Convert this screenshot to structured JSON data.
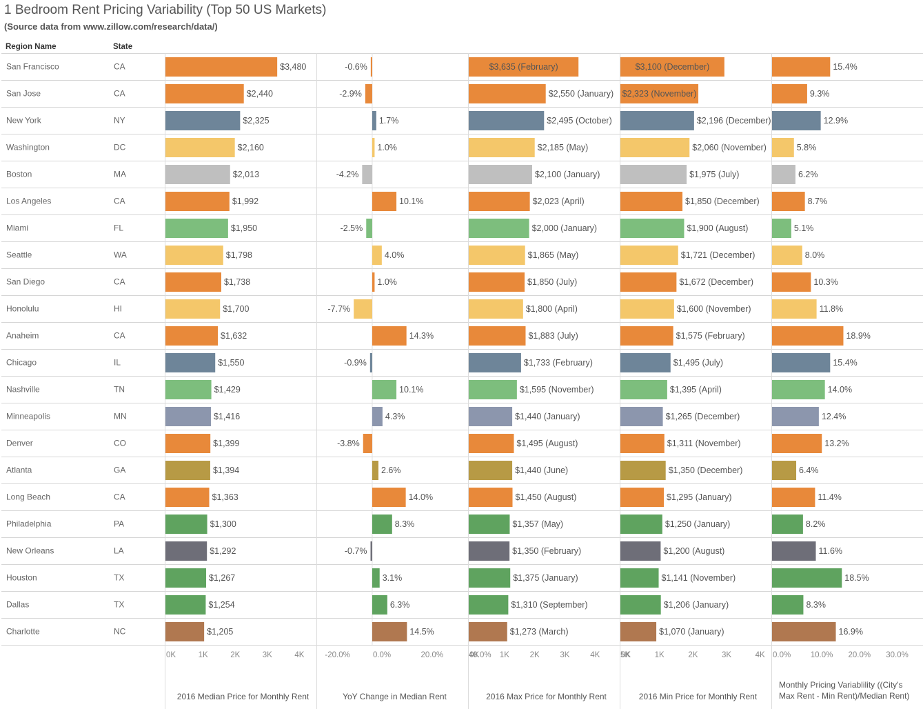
{
  "title": "1 Bedroom Rent Pricing Variability (Top 50 US Markets)",
  "subtitle": "(Source data from www.zillow.com/research/data/)",
  "headers": {
    "region": "Region Name",
    "state": "State"
  },
  "chart_data": {
    "type": "bar",
    "orientation": "horizontal",
    "rows": [
      {
        "region": "San Francisco",
        "state": "CA",
        "color": "#E8893A",
        "median": 3480,
        "median_label": "$3,480",
        "yoy": -0.6,
        "yoy_label": "-0.6%",
        "max": 3635,
        "max_label": "$3,635 (February)",
        "min": 3100,
        "min_label": "$3,100 (December)",
        "var": 15.4,
        "var_label": "15.4%"
      },
      {
        "region": "San Jose",
        "state": "CA",
        "color": "#E8893A",
        "median": 2440,
        "median_label": "$2,440",
        "yoy": -2.9,
        "yoy_label": "-2.9%",
        "max": 2550,
        "max_label": "$2,550 (January)",
        "min": 2323,
        "min_label": "$2,323 (November)",
        "var": 9.3,
        "var_label": "9.3%"
      },
      {
        "region": "New York",
        "state": "NY",
        "color": "#6E8599",
        "median": 2325,
        "median_label": "$2,325",
        "yoy": 1.7,
        "yoy_label": "1.7%",
        "max": 2495,
        "max_label": "$2,495 (October)",
        "min": 2196,
        "min_label": "$2,196 (December)",
        "var": 12.9,
        "var_label": "12.9%"
      },
      {
        "region": "Washington",
        "state": "DC",
        "color": "#F4C76A",
        "median": 2160,
        "median_label": "$2,160",
        "yoy": 1.0,
        "yoy_label": "1.0%",
        "max": 2185,
        "max_label": "$2,185 (May)",
        "min": 2060,
        "min_label": "$2,060 (November)",
        "var": 5.8,
        "var_label": "5.8%"
      },
      {
        "region": "Boston",
        "state": "MA",
        "color": "#BFBFBF",
        "median": 2013,
        "median_label": "$2,013",
        "yoy": -4.2,
        "yoy_label": "-4.2%",
        "max": 2100,
        "max_label": "$2,100 (January)",
        "min": 1975,
        "min_label": "$1,975 (July)",
        "var": 6.2,
        "var_label": "6.2%"
      },
      {
        "region": "Los Angeles",
        "state": "CA",
        "color": "#E8893A",
        "median": 1992,
        "median_label": "$1,992",
        "yoy": 10.1,
        "yoy_label": "10.1%",
        "max": 2023,
        "max_label": "$2,023 (April)",
        "min": 1850,
        "min_label": "$1,850 (December)",
        "var": 8.7,
        "var_label": "8.7%"
      },
      {
        "region": "Miami",
        "state": "FL",
        "color": "#7DBE7D",
        "median": 1950,
        "median_label": "$1,950",
        "yoy": -2.5,
        "yoy_label": "-2.5%",
        "max": 2000,
        "max_label": "$2,000 (January)",
        "min": 1900,
        "min_label": "$1,900 (August)",
        "var": 5.1,
        "var_label": "5.1%"
      },
      {
        "region": "Seattle",
        "state": "WA",
        "color": "#F4C76A",
        "median": 1798,
        "median_label": "$1,798",
        "yoy": 4.0,
        "yoy_label": "4.0%",
        "max": 1865,
        "max_label": "$1,865 (May)",
        "min": 1721,
        "min_label": "$1,721 (December)",
        "var": 8.0,
        "var_label": "8.0%"
      },
      {
        "region": "San Diego",
        "state": "CA",
        "color": "#E8893A",
        "median": 1738,
        "median_label": "$1,738",
        "yoy": 1.0,
        "yoy_label": "1.0%",
        "max": 1850,
        "max_label": "$1,850 (July)",
        "min": 1672,
        "min_label": "$1,672 (December)",
        "var": 10.3,
        "var_label": "10.3%"
      },
      {
        "region": "Honolulu",
        "state": "HI",
        "color": "#F4C76A",
        "median": 1700,
        "median_label": "$1,700",
        "yoy": -7.7,
        "yoy_label": "-7.7%",
        "max": 1800,
        "max_label": "$1,800 (April)",
        "min": 1600,
        "min_label": "$1,600 (November)",
        "var": 11.8,
        "var_label": "11.8%"
      },
      {
        "region": "Anaheim",
        "state": "CA",
        "color": "#E8893A",
        "median": 1632,
        "median_label": "$1,632",
        "yoy": 14.3,
        "yoy_label": "14.3%",
        "max": 1883,
        "max_label": "$1,883 (July)",
        "min": 1575,
        "min_label": "$1,575 (February)",
        "var": 18.9,
        "var_label": "18.9%"
      },
      {
        "region": "Chicago",
        "state": "IL",
        "color": "#6E8599",
        "median": 1550,
        "median_label": "$1,550",
        "yoy": -0.9,
        "yoy_label": "-0.9%",
        "max": 1733,
        "max_label": "$1,733 (February)",
        "min": 1495,
        "min_label": "$1,495 (July)",
        "var": 15.4,
        "var_label": "15.4%"
      },
      {
        "region": "Nashville",
        "state": "TN",
        "color": "#7DBE7D",
        "median": 1429,
        "median_label": "$1,429",
        "yoy": 10.1,
        "yoy_label": "10.1%",
        "max": 1595,
        "max_label": "$1,595 (November)",
        "min": 1395,
        "min_label": "$1,395 (April)",
        "var": 14.0,
        "var_label": "14.0%"
      },
      {
        "region": "Minneapolis",
        "state": "MN",
        "color": "#8C96AD",
        "median": 1416,
        "median_label": "$1,416",
        "yoy": 4.3,
        "yoy_label": "4.3%",
        "max": 1440,
        "max_label": "$1,440 (January)",
        "min": 1265,
        "min_label": "$1,265 (December)",
        "var": 12.4,
        "var_label": "12.4%"
      },
      {
        "region": "Denver",
        "state": "CO",
        "color": "#E8893A",
        "median": 1399,
        "median_label": "$1,399",
        "yoy": -3.8,
        "yoy_label": "-3.8%",
        "max": 1495,
        "max_label": "$1,495 (August)",
        "min": 1311,
        "min_label": "$1,311 (November)",
        "var": 13.2,
        "var_label": "13.2%"
      },
      {
        "region": "Atlanta",
        "state": "GA",
        "color": "#B79A45",
        "median": 1394,
        "median_label": "$1,394",
        "yoy": 2.6,
        "yoy_label": "2.6%",
        "max": 1440,
        "max_label": "$1,440 (June)",
        "min": 1350,
        "min_label": "$1,350 (December)",
        "var": 6.4,
        "var_label": "6.4%"
      },
      {
        "region": "Long Beach",
        "state": "CA",
        "color": "#E8893A",
        "median": 1363,
        "median_label": "$1,363",
        "yoy": 14.0,
        "yoy_label": "14.0%",
        "max": 1450,
        "max_label": "$1,450 (August)",
        "min": 1295,
        "min_label": "$1,295 (January)",
        "var": 11.4,
        "var_label": "11.4%"
      },
      {
        "region": "Philadelphia",
        "state": "PA",
        "color": "#5FA35F",
        "median": 1300,
        "median_label": "$1,300",
        "yoy": 8.3,
        "yoy_label": "8.3%",
        "max": 1357,
        "max_label": "$1,357 (May)",
        "min": 1250,
        "min_label": "$1,250 (January)",
        "var": 8.2,
        "var_label": "8.2%"
      },
      {
        "region": "New Orleans",
        "state": "LA",
        "color": "#6E6E78",
        "median": 1292,
        "median_label": "$1,292",
        "yoy": -0.7,
        "yoy_label": "-0.7%",
        "max": 1350,
        "max_label": "$1,350 (February)",
        "min": 1200,
        "min_label": "$1,200 (August)",
        "var": 11.6,
        "var_label": "11.6%"
      },
      {
        "region": "Houston",
        "state": "TX",
        "color": "#5FA35F",
        "median": 1267,
        "median_label": "$1,267",
        "yoy": 3.1,
        "yoy_label": "3.1%",
        "max": 1375,
        "max_label": "$1,375 (January)",
        "min": 1141,
        "min_label": "$1,141 (November)",
        "var": 18.5,
        "var_label": "18.5%"
      },
      {
        "region": "Dallas",
        "state": "TX",
        "color": "#5FA35F",
        "median": 1254,
        "median_label": "$1,254",
        "yoy": 6.3,
        "yoy_label": "6.3%",
        "max": 1310,
        "max_label": "$1,310 (September)",
        "min": 1206,
        "min_label": "$1,206 (January)",
        "var": 8.3,
        "var_label": "8.3%"
      },
      {
        "region": "Charlotte",
        "state": "NC",
        "color": "#B07850",
        "median": 1205,
        "median_label": "$1,205",
        "yoy": 14.5,
        "yoy_label": "14.5%",
        "max": 1273,
        "max_label": "$1,273 (March)",
        "min": 1070,
        "min_label": "$1,070 (January)",
        "var": 16.9,
        "var_label": "16.9%"
      }
    ],
    "axes": [
      {
        "key": "median",
        "title": "2016 Median Price for Monthly Rent",
        "domain": [
          0,
          4700
        ],
        "ticks": [
          0,
          1000,
          2000,
          3000,
          4000
        ],
        "tick_labels": [
          "0K",
          "1K",
          "2K",
          "3K",
          "4K"
        ]
      },
      {
        "key": "yoy",
        "title": "YoY Change in Median Rent",
        "domain": [
          -23,
          40
        ],
        "ticks": [
          -20,
          0,
          20,
          40
        ],
        "tick_labels": [
          "-20.0%",
          "0.0%",
          "20.0%",
          "40.0%"
        ]
      },
      {
        "key": "max",
        "title": "2016 Max Price for Monthly Rent",
        "domain": [
          0,
          5000
        ],
        "ticks": [
          0,
          1000,
          2000,
          3000,
          4000,
          5000
        ],
        "tick_labels": [
          "0K",
          "1K",
          "2K",
          "3K",
          "4K",
          "5K"
        ]
      },
      {
        "key": "min",
        "title": "2016 Min Price for Monthly Rent",
        "domain": [
          0,
          4500
        ],
        "ticks": [
          0,
          1000,
          2000,
          3000,
          4000
        ],
        "tick_labels": [
          "0K",
          "1K",
          "2K",
          "3K",
          "4K"
        ]
      },
      {
        "key": "var",
        "title_lines": [
          "Monthly Pricing Variablility ((City's",
          "Max Rent - Min Rent)/Median Rent)"
        ],
        "domain": [
          0,
          40
        ],
        "ticks": [
          0,
          10,
          20,
          30
        ],
        "tick_labels": [
          "0.0%",
          "10.0%",
          "20.0%",
          "30.0%"
        ]
      }
    ],
    "grid": false,
    "legend": "none"
  }
}
